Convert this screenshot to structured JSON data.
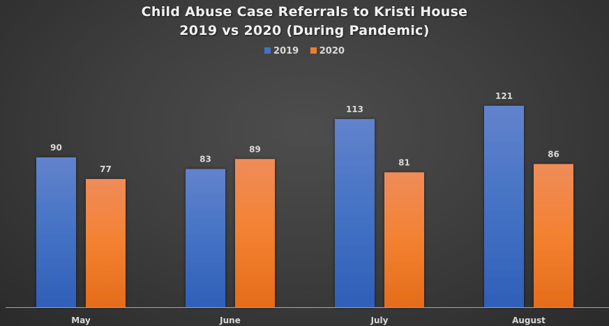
{
  "chart_data": {
    "type": "bar",
    "title": "Child Abuse Case Referrals to Kristi House",
    "subtitle": "2019 vs 2020 (During Pandemic)",
    "categories": [
      "May",
      "June",
      "July",
      "August"
    ],
    "series": [
      {
        "name": "2019",
        "color": "#4472C4",
        "values": [
          90,
          83,
          113,
          121
        ]
      },
      {
        "name": "2020",
        "color": "#ED7D31",
        "values": [
          77,
          89,
          81,
          86
        ]
      }
    ],
    "xlabel": "",
    "ylabel": "",
    "ylim": [
      0,
      184
    ],
    "grid": false,
    "legend_position": "top-center"
  }
}
